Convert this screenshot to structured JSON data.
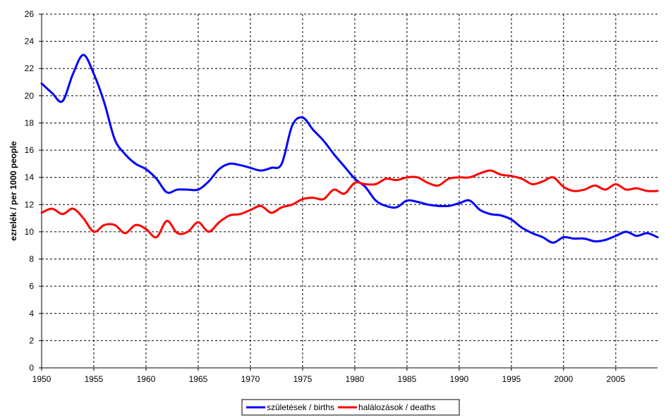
{
  "chart_data": {
    "type": "line",
    "ylabel": "ezrelék / per 1000 people",
    "xlabel": "",
    "xlim": [
      1950,
      2009
    ],
    "ylim": [
      0,
      26
    ],
    "x_ticks": [
      1950,
      1955,
      1960,
      1965,
      1970,
      1975,
      1980,
      1985,
      1990,
      1995,
      2000,
      2005
    ],
    "y_ticks": [
      0,
      2,
      4,
      6,
      8,
      10,
      12,
      14,
      16,
      18,
      20,
      22,
      24,
      26
    ],
    "grid": true,
    "legend_position": "bottom",
    "x": [
      1950,
      1951,
      1952,
      1953,
      1954,
      1955,
      1956,
      1957,
      1958,
      1959,
      1960,
      1961,
      1962,
      1963,
      1964,
      1965,
      1966,
      1967,
      1968,
      1969,
      1970,
      1971,
      1972,
      1973,
      1974,
      1975,
      1976,
      1977,
      1978,
      1979,
      1980,
      1981,
      1982,
      1983,
      1984,
      1985,
      1986,
      1987,
      1988,
      1989,
      1990,
      1991,
      1992,
      1993,
      1994,
      1995,
      1996,
      1997,
      1998,
      1999,
      2000,
      2001,
      2002,
      2003,
      2004,
      2005,
      2006,
      2007,
      2008,
      2009
    ],
    "series": [
      {
        "name": "születések / births",
        "color": "#0000ff",
        "values": [
          20.9,
          20.2,
          19.6,
          21.6,
          23.0,
          21.6,
          19.5,
          16.8,
          15.7,
          15.0,
          14.6,
          13.9,
          12.9,
          13.1,
          13.1,
          13.1,
          13.7,
          14.6,
          15.0,
          14.9,
          14.7,
          14.5,
          14.7,
          15.0,
          17.8,
          18.4,
          17.5,
          16.7,
          15.7,
          14.8,
          13.9,
          13.3,
          12.3,
          11.9,
          11.8,
          12.3,
          12.2,
          12.0,
          11.9,
          11.9,
          12.1,
          12.3,
          11.6,
          11.3,
          11.2,
          10.9,
          10.3,
          9.9,
          9.6,
          9.2,
          9.6,
          9.5,
          9.5,
          9.3,
          9.4,
          9.7,
          10.0,
          9.7,
          9.9,
          9.6
        ],
        "line_width": 3
      },
      {
        "name": "halálozások / deaths",
        "color": "#ff0000",
        "values": [
          11.4,
          11.7,
          11.3,
          11.7,
          11.0,
          10.0,
          10.5,
          10.5,
          9.9,
          10.5,
          10.2,
          9.6,
          10.8,
          9.9,
          10.0,
          10.7,
          10.0,
          10.7,
          11.2,
          11.3,
          11.6,
          11.9,
          11.4,
          11.8,
          12.0,
          12.4,
          12.5,
          12.4,
          13.1,
          12.8,
          13.6,
          13.5,
          13.5,
          13.9,
          13.8,
          14.0,
          14.0,
          13.6,
          13.4,
          13.9,
          14.0,
          14.0,
          14.3,
          14.5,
          14.2,
          14.1,
          13.9,
          13.5,
          13.7,
          14.0,
          13.3,
          13.0,
          13.1,
          13.4,
          13.1,
          13.5,
          13.1,
          13.2,
          13.0,
          13.0
        ],
        "line_width": 3
      }
    ]
  }
}
